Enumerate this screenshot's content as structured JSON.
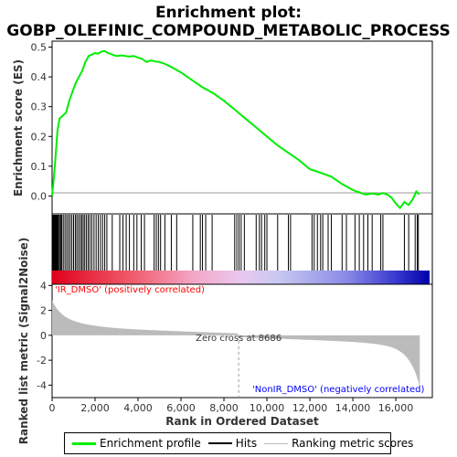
{
  "chart_data": {
    "type": "line",
    "title_line1": "Enrichment plot:",
    "title_line2": "GOBP_OLEFINIC_COMPOUND_METABOLIC_PROCESS",
    "es_ylabel": "Enrichment score (ES)",
    "metric_ylabel": "Ranked list metric (Signal2Noise)",
    "xlabel": "Rank in Ordered Dataset",
    "xlim": [
      0,
      17700
    ],
    "es_ylim": [
      -0.06,
      0.52
    ],
    "metric_ylim": [
      -5.0,
      4.1
    ],
    "x_ticks": [
      0,
      2000,
      4000,
      6000,
      8000,
      10000,
      12000,
      14000,
      16000
    ],
    "x_tick_labels": [
      "0",
      "2,000",
      "4,000",
      "6,000",
      "8,000",
      "10,000",
      "12,000",
      "14,000",
      "16,000"
    ],
    "es_ticks": [
      0.0,
      0.1,
      0.2,
      0.3,
      0.4,
      0.5
    ],
    "es_tick_labels": [
      "0.0",
      "0.1",
      "0.2",
      "0.3",
      "0.4",
      "0.5"
    ],
    "metric_ticks": [
      -4,
      -2,
      0,
      2,
      4
    ],
    "metric_tick_labels": [
      "-4",
      "-2",
      "0",
      "2",
      "4"
    ],
    "zero_cross_rank": 8686,
    "zero_cross_label": "Zero cross at 8686",
    "pos_label": "'IR_DMSO' (positively correlated)",
    "neg_label": "'NonIR_DMSO' (negatively correlated)",
    "es_profile": {
      "x": [
        0,
        80,
        150,
        250,
        350,
        500,
        650,
        800,
        950,
        1100,
        1250,
        1400,
        1550,
        1700,
        1850,
        2000,
        2150,
        2300,
        2450,
        2600,
        2800,
        3000,
        3200,
        3400,
        3600,
        3800,
        4000,
        4200,
        4400,
        4600,
        4800,
        5000,
        5200,
        5500,
        6000,
        6500,
        7000,
        7500,
        8000,
        8500,
        9000,
        9500,
        10000,
        10500,
        11000,
        11500,
        12000,
        12500,
        13000,
        13500,
        14000,
        14300,
        14600,
        14900,
        15200,
        15400,
        15600,
        15800,
        16000,
        16200,
        16400,
        16600,
        16800,
        16950,
        17100
      ],
      "y": [
        0.0,
        0.06,
        0.12,
        0.22,
        0.26,
        0.27,
        0.28,
        0.32,
        0.35,
        0.38,
        0.4,
        0.42,
        0.45,
        0.47,
        0.475,
        0.48,
        0.478,
        0.485,
        0.487,
        0.48,
        0.475,
        0.47,
        0.472,
        0.47,
        0.468,
        0.47,
        0.465,
        0.46,
        0.45,
        0.455,
        0.452,
        0.45,
        0.445,
        0.435,
        0.415,
        0.39,
        0.365,
        0.345,
        0.32,
        0.29,
        0.26,
        0.23,
        0.2,
        0.17,
        0.145,
        0.12,
        0.09,
        0.078,
        0.065,
        0.04,
        0.02,
        0.012,
        0.005,
        0.008,
        0.005,
        0.01,
        0.005,
        -0.005,
        -0.025,
        -0.04,
        -0.02,
        -0.03,
        -0.01,
        0.015,
        0.005
      ]
    },
    "hit_ranks": [
      20,
      45,
      70,
      95,
      120,
      150,
      175,
      200,
      230,
      260,
      300,
      350,
      400,
      450,
      520,
      600,
      680,
      760,
      840,
      920,
      1000,
      1080,
      1150,
      1230,
      1310,
      1380,
      1450,
      1520,
      1600,
      1680,
      1760,
      1850,
      1950,
      2050,
      2150,
      2250,
      2350,
      2450,
      2550,
      2800,
      3150,
      3300,
      3450,
      3600,
      3800,
      3950,
      4150,
      4300,
      4750,
      4850,
      4950,
      5050,
      5250,
      5550,
      5800,
      6550,
      6900,
      7000,
      7150,
      7450,
      8500,
      8600,
      8700,
      8800,
      8950,
      9500,
      9650,
      9750,
      9900,
      10000,
      10500,
      11000,
      11100,
      12100,
      12200,
      12350,
      12500,
      12600,
      12850,
      13000,
      13500,
      13700,
      14100,
      14300,
      14500,
      14700,
      14900,
      15300,
      15400,
      16400,
      16600,
      16900,
      17000,
      17050
    ]
  },
  "legend": {
    "profile": "Enrichment profile",
    "hits": "Hits",
    "ranking": "Ranking metric scores"
  },
  "colors": {
    "profile": "#00ee00",
    "hits": "#000000",
    "metric_fill": "#bbbbbb",
    "pos_label": "#ff0000",
    "neg_label": "#0000ff"
  }
}
